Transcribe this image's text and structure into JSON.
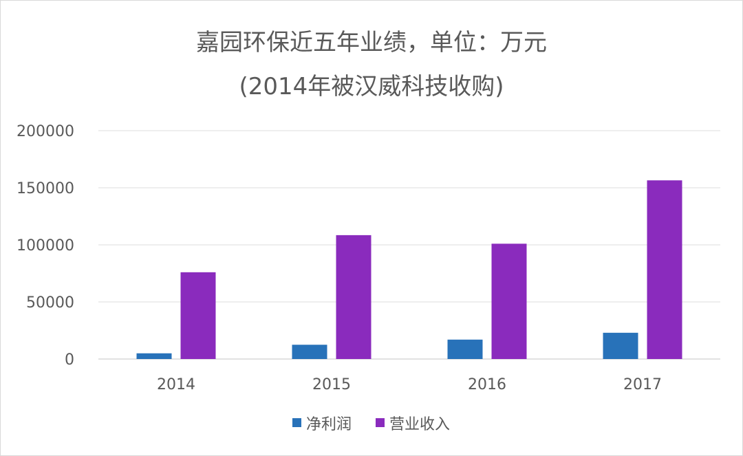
{
  "chart_data": {
    "type": "bar",
    "title": "嘉园环保近五年业绩，单位：万元",
    "subtitle": "(2014年被汉威科技收购)",
    "categories": [
      "2014",
      "2015",
      "2016",
      "2017"
    ],
    "series": [
      {
        "name": "净利润",
        "color": "#2872b9",
        "values": [
          5000,
          12500,
          17000,
          23000
        ]
      },
      {
        "name": "营业收入",
        "color": "#8a2bbd",
        "values": [
          76000,
          108500,
          101000,
          156500
        ]
      }
    ],
    "yticks": [
      "0",
      "50000",
      "100000",
      "150000",
      "200000"
    ],
    "ylim": [
      0,
      200000
    ],
    "grid": true,
    "legend": "bottom"
  }
}
